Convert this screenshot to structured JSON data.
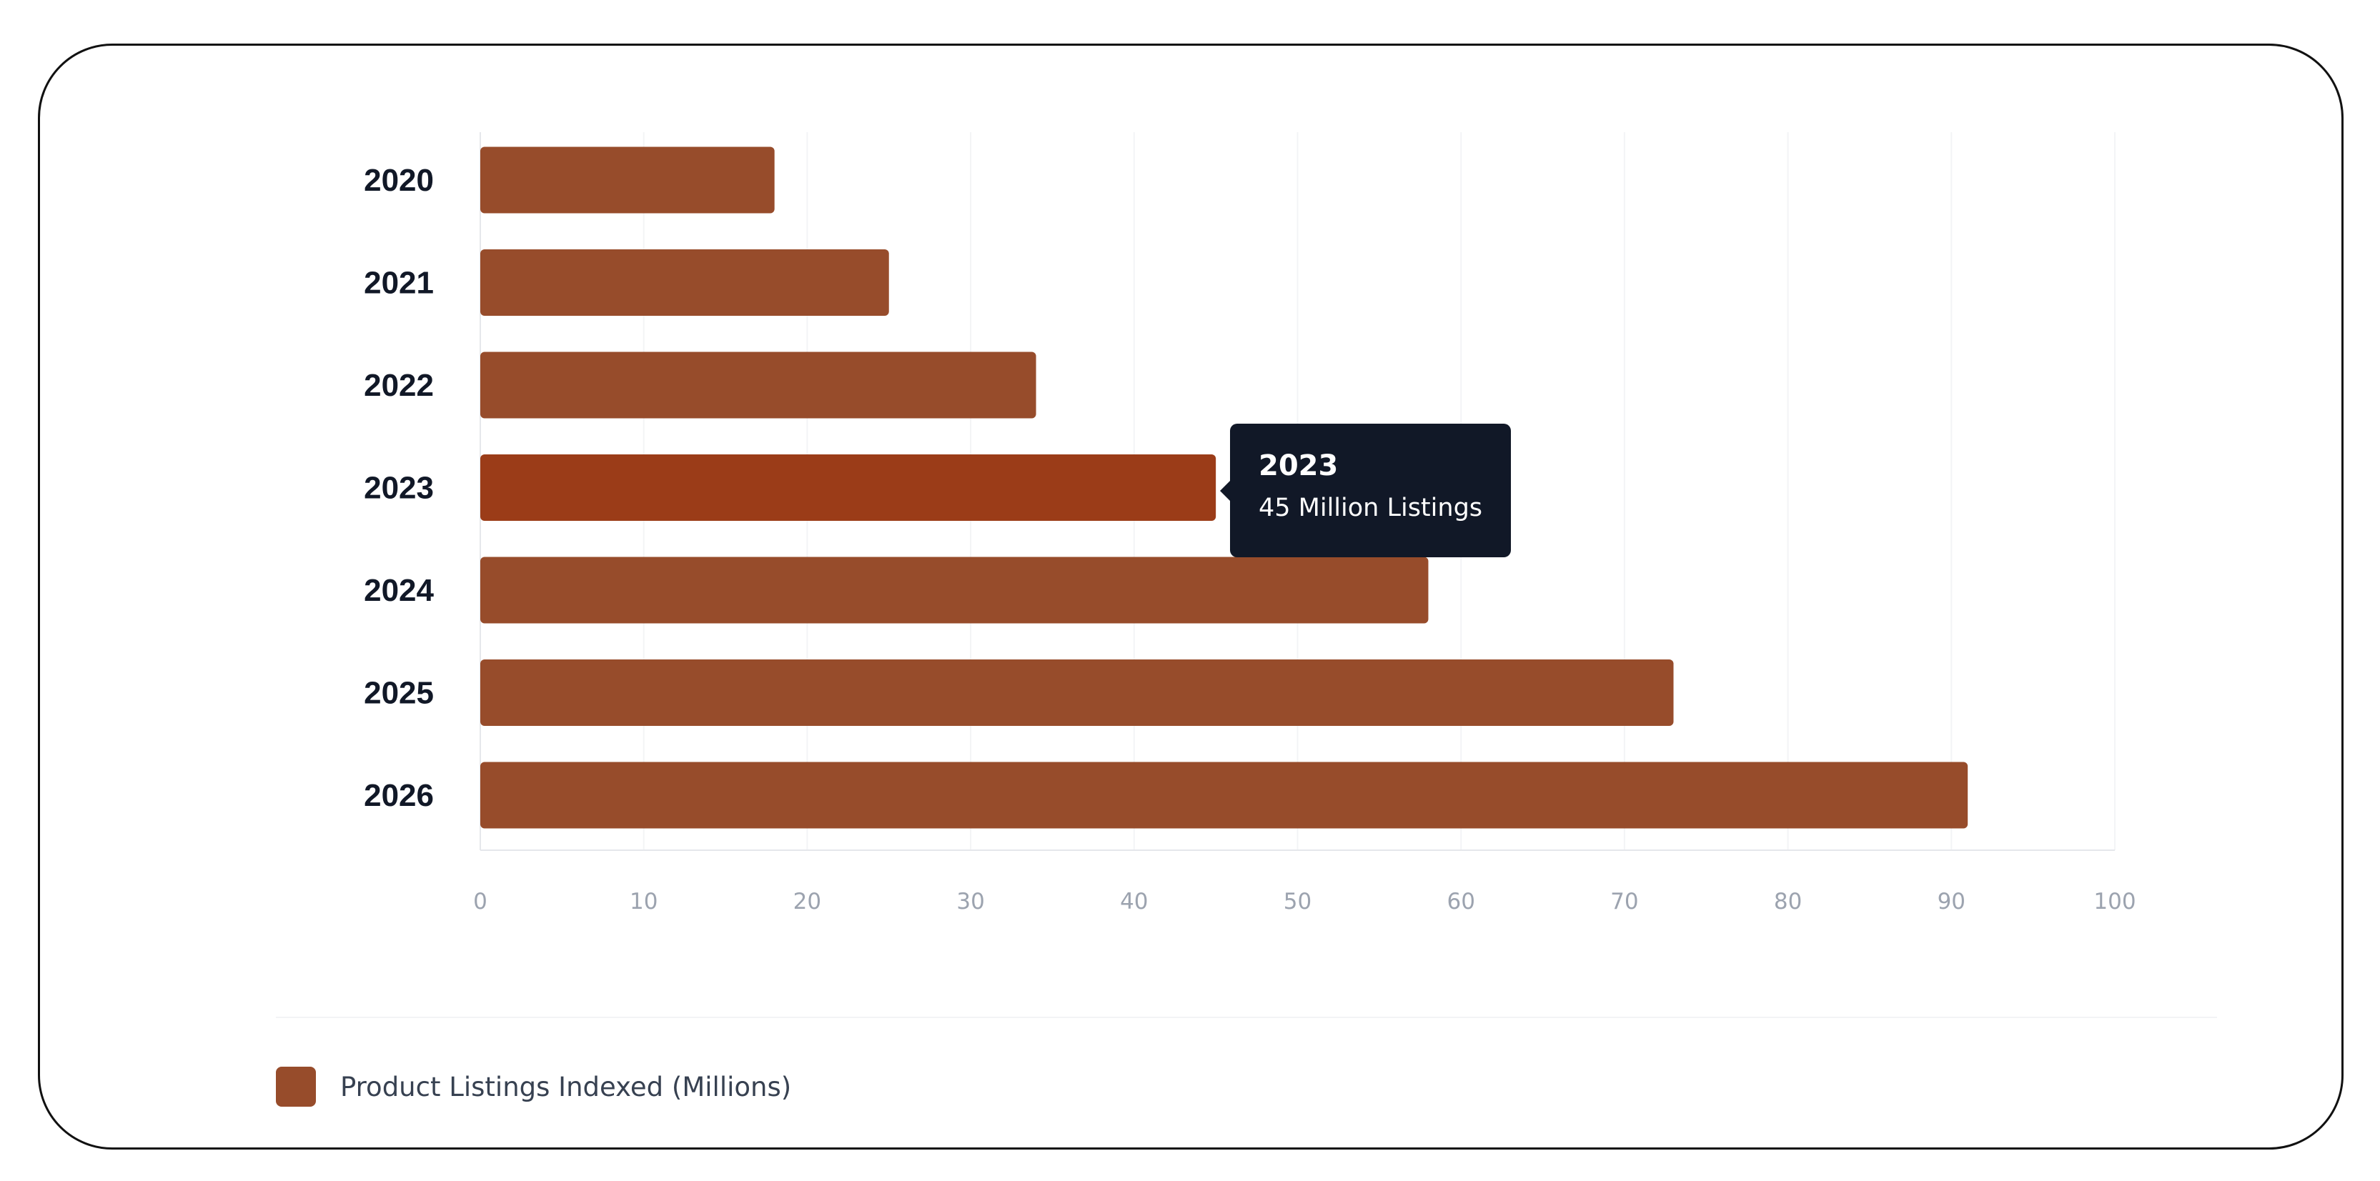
{
  "chart_data": {
    "type": "bar",
    "orientation": "horizontal",
    "categories": [
      "2020",
      "2021",
      "2022",
      "2023",
      "2024",
      "2025",
      "2026"
    ],
    "series": [
      {
        "name": "Product Listings Indexed (Millions)",
        "values": [
          18,
          25,
          34,
          45,
          58,
          73,
          91
        ]
      }
    ],
    "xlim": [
      0,
      100
    ],
    "x_ticks": [
      "0",
      "10",
      "20",
      "30",
      "40",
      "50",
      "60",
      "70",
      "80",
      "90",
      "100"
    ],
    "grid": "vertical",
    "legend_position": "bottom-left",
    "highlighted_category": "2023",
    "colors": {
      "bar": "#974c2b",
      "bar_highlight": "#9b3c18",
      "grid": "#f3f4f6",
      "axis": "#e5e7eb"
    }
  },
  "tooltip": {
    "title": "2023",
    "text": "45 Million Listings"
  },
  "legend": {
    "label": "Product Listings Indexed (Millions)",
    "color": "#974c2b"
  }
}
